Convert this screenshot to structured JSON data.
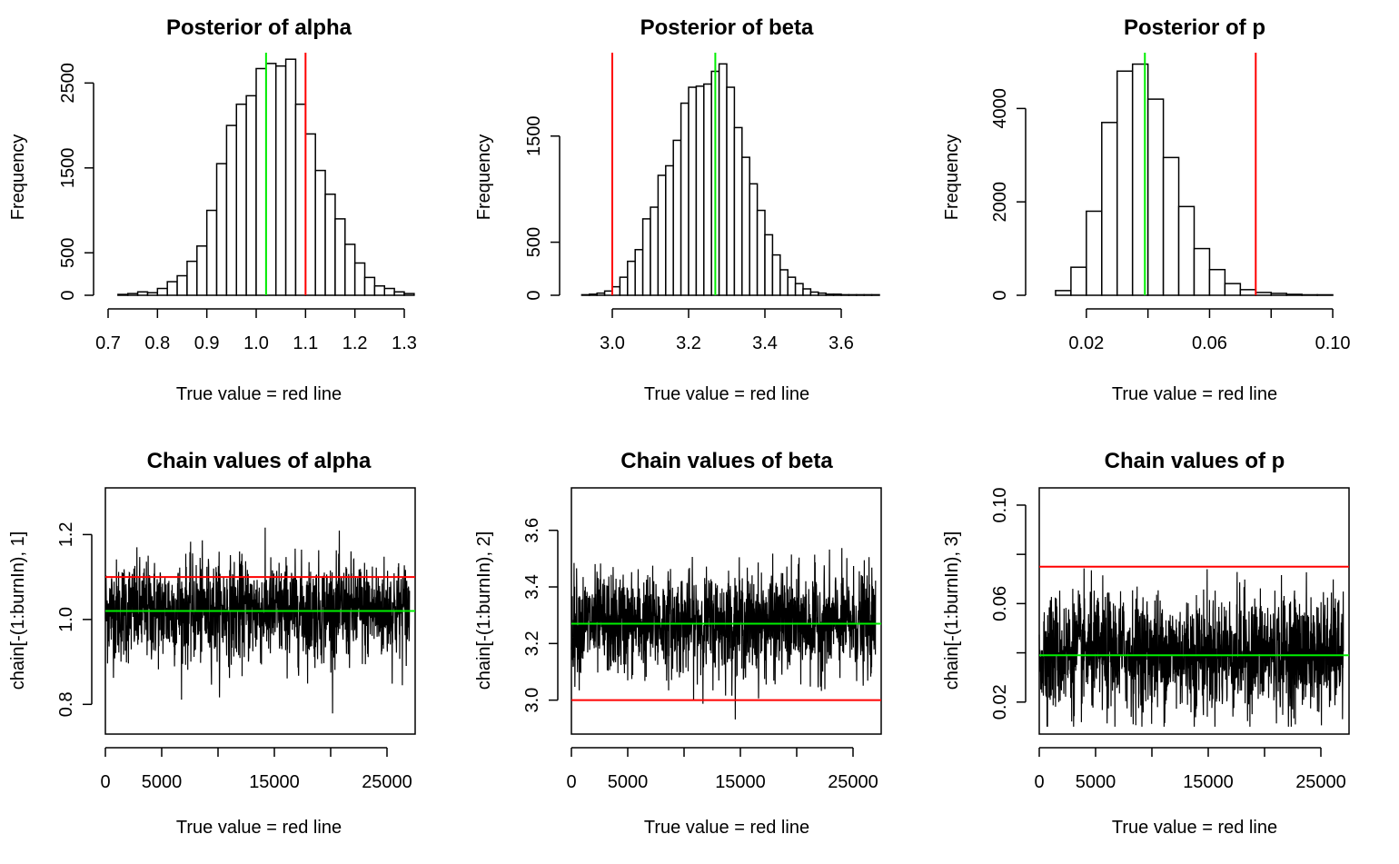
{
  "colors": {
    "true_line": "#ff0000",
    "mean_line": "#00ee00",
    "bar_fill": "#ffffff",
    "stroke": "#000000"
  },
  "chart_data": [
    {
      "type": "bar",
      "kind": "histogram",
      "title": "Posterior of alpha",
      "xlabel": "True value = red line",
      "ylabel": "Frequency",
      "xlim": [
        0.7,
        1.3
      ],
      "ylim": [
        0,
        2750
      ],
      "xticks": [
        0.7,
        0.8,
        0.9,
        1.0,
        1.1,
        1.2,
        1.3
      ],
      "xtick_labels": [
        "0.7",
        "0.8",
        "0.9",
        "1.0",
        "1.1",
        "1.2",
        "1.3"
      ],
      "yticks": [
        0,
        500,
        1500,
        2500
      ],
      "ytick_labels": [
        "0",
        "500",
        "1500",
        "2500"
      ],
      "bin_start": 0.72,
      "bin_width": 0.02,
      "counts": [
        10,
        20,
        40,
        30,
        80,
        160,
        230,
        400,
        580,
        1000,
        1550,
        2000,
        2250,
        2350,
        2670,
        2730,
        2700,
        2780,
        2250,
        1900,
        1470,
        1190,
        900,
        600,
        380,
        210,
        110,
        80,
        40,
        20
      ],
      "true_value": 1.1,
      "mean_value": 1.02
    },
    {
      "type": "bar",
      "kind": "histogram",
      "title": "Posterior of beta",
      "xlabel": "True value = red line",
      "ylabel": "Frequency",
      "xlim": [
        2.9,
        3.7
      ],
      "ylim": [
        0,
        2200
      ],
      "xticks": [
        3.0,
        3.2,
        3.4,
        3.6
      ],
      "xtick_labels": [
        "3.0",
        "3.2",
        "3.4",
        "3.6"
      ],
      "yticks": [
        0,
        500,
        1500
      ],
      "ytick_labels": [
        "0",
        "500",
        "1500"
      ],
      "bin_start": 2.92,
      "bin_width": 0.02,
      "counts": [
        5,
        10,
        20,
        40,
        80,
        170,
        320,
        430,
        720,
        830,
        1130,
        1220,
        1460,
        1810,
        1960,
        1970,
        1990,
        2110,
        2180,
        1960,
        1580,
        1300,
        1050,
        800,
        570,
        380,
        240,
        170,
        110,
        60,
        30,
        20,
        10,
        10,
        5,
        5,
        5,
        5,
        5
      ],
      "true_value": 3.0,
      "mean_value": 3.27
    },
    {
      "type": "bar",
      "kind": "histogram",
      "title": "Posterior of p",
      "xlabel": "True value = red line",
      "ylabel": "Frequency",
      "xlim": [
        0.005,
        0.105
      ],
      "ylim": [
        0,
        5000
      ],
      "xticks": [
        0.02,
        0.04,
        0.06,
        0.08,
        0.1
      ],
      "xtick_labels": [
        "0.02",
        "",
        "0.06",
        "",
        "0.10"
      ],
      "yticks": [
        0,
        2000,
        4000
      ],
      "ytick_labels": [
        "0",
        "2000",
        "4000"
      ],
      "bin_start": 0.01,
      "bin_width": 0.005,
      "counts": [
        100,
        600,
        1800,
        3700,
        4800,
        4950,
        4200,
        2950,
        1900,
        1000,
        550,
        250,
        120,
        60,
        40,
        20,
        10,
        10
      ],
      "true_value": 0.075,
      "mean_value": 0.039
    },
    {
      "type": "line",
      "kind": "trace",
      "title": "Chain values of alpha",
      "xlabel": "True value = red line",
      "ylabel": "chain[-(1:burnIn), 1]",
      "xlim": [
        0,
        27500
      ],
      "ylim": [
        0.73,
        1.31
      ],
      "xticks": [
        0,
        5000,
        10000,
        15000,
        20000,
        25000
      ],
      "xtick_labels": [
        "0",
        "5000",
        "",
        "15000",
        "",
        "25000"
      ],
      "yticks": [
        0.8,
        1.0,
        1.2
      ],
      "ytick_labels": [
        "0.8",
        "1.0",
        "1.2"
      ],
      "n_iterations": 27000,
      "mean": 1.02,
      "sd": 0.06,
      "min": 0.74,
      "max": 1.29,
      "true_value": 1.1,
      "mean_value": 1.02
    },
    {
      "type": "line",
      "kind": "trace",
      "title": "Chain values of beta",
      "xlabel": "True value = red line",
      "ylabel": "chain[-(1:burnIn), 2]",
      "xlim": [
        0,
        27500
      ],
      "ylim": [
        2.88,
        3.75
      ],
      "xticks": [
        0,
        5000,
        10000,
        15000,
        20000,
        25000
      ],
      "xtick_labels": [
        "0",
        "5000",
        "",
        "15000",
        "",
        "25000"
      ],
      "yticks": [
        3.0,
        3.2,
        3.4,
        3.6
      ],
      "ytick_labels": [
        "3.0",
        "3.2",
        "3.4",
        "3.6"
      ],
      "n_iterations": 27000,
      "mean": 3.27,
      "sd": 0.09,
      "min": 2.91,
      "max": 3.71,
      "true_value": 3.0,
      "mean_value": 3.27
    },
    {
      "type": "line",
      "kind": "trace",
      "title": "Chain values of p",
      "xlabel": "True value = red line",
      "ylabel": "chain[-(1:burnIn), 3]",
      "xlim": [
        0,
        27500
      ],
      "ylim": [
        0.007,
        0.107
      ],
      "xticks": [
        0,
        5000,
        10000,
        15000,
        20000,
        25000
      ],
      "xtick_labels": [
        "0",
        "5000",
        "",
        "15000",
        "",
        "25000"
      ],
      "yticks": [
        0.02,
        0.04,
        0.06,
        0.08,
        0.1
      ],
      "ytick_labels": [
        "0.02",
        "",
        "0.06",
        "",
        "0.10"
      ],
      "n_iterations": 27000,
      "mean": 0.04,
      "sd": 0.012,
      "min": 0.01,
      "max": 0.103,
      "true_value": 0.075,
      "mean_value": 0.039
    }
  ]
}
